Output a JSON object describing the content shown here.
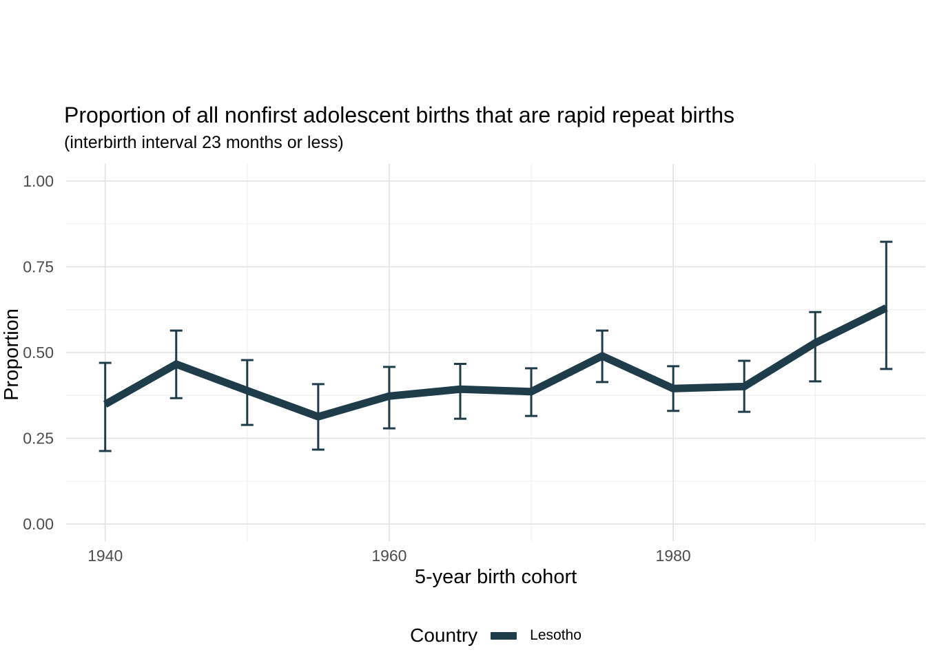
{
  "chart_data": {
    "type": "line",
    "title": "Proportion of all nonfirst adolescent births that are rapid repeat births",
    "subtitle": "(interbirth interval 23 months or less)",
    "xlabel": "5-year birth cohort",
    "ylabel": "Proportion",
    "x": [
      1940,
      1945,
      1950,
      1955,
      1960,
      1965,
      1970,
      1975,
      1980,
      1985,
      1990,
      1995
    ],
    "series": [
      {
        "name": "Lesotho",
        "color": "#1e3c4a",
        "values": [
          0.349,
          0.466,
          0.389,
          0.313,
          0.373,
          0.393,
          0.386,
          0.49,
          0.395,
          0.401,
          0.528,
          0.63
        ],
        "ci_upper": [
          0.47,
          0.564,
          0.478,
          0.408,
          0.458,
          0.467,
          0.454,
          0.564,
          0.46,
          0.476,
          0.618,
          0.823
        ],
        "ci_lower": [
          0.213,
          0.367,
          0.289,
          0.217,
          0.279,
          0.307,
          0.315,
          0.414,
          0.33,
          0.327,
          0.416,
          0.452
        ]
      }
    ],
    "error_bars": true,
    "xlim": [
      1937.25,
      1997.75
    ],
    "ylim": [
      -0.05,
      1.05
    ],
    "x_ticks": {
      "major": [
        1940,
        1960,
        1980
      ],
      "major_labels": [
        "1940",
        "1960",
        "1980"
      ],
      "minor": [
        1950,
        1970,
        1990
      ]
    },
    "y_ticks": {
      "major": [
        0,
        0.25,
        0.5,
        0.75,
        1
      ],
      "major_labels": [
        "0.00",
        "0.25",
        "0.50",
        "0.75",
        "1.00"
      ],
      "minor": [
        0.125,
        0.375,
        0.625,
        0.875
      ]
    },
    "grid": "major and minor, light gray on white",
    "legend_position": "bottom"
  },
  "legend": {
    "title": "Country",
    "items": [
      {
        "label": "Lesotho",
        "color": "#1e3c4a"
      }
    ]
  },
  "colors": {
    "series_line": "#1e3c4a",
    "grid_major": "#e3e3e3",
    "grid_minor": "#efefef",
    "tick_label": "#4d4d4d",
    "text": "#000000",
    "background": "#ffffff"
  }
}
